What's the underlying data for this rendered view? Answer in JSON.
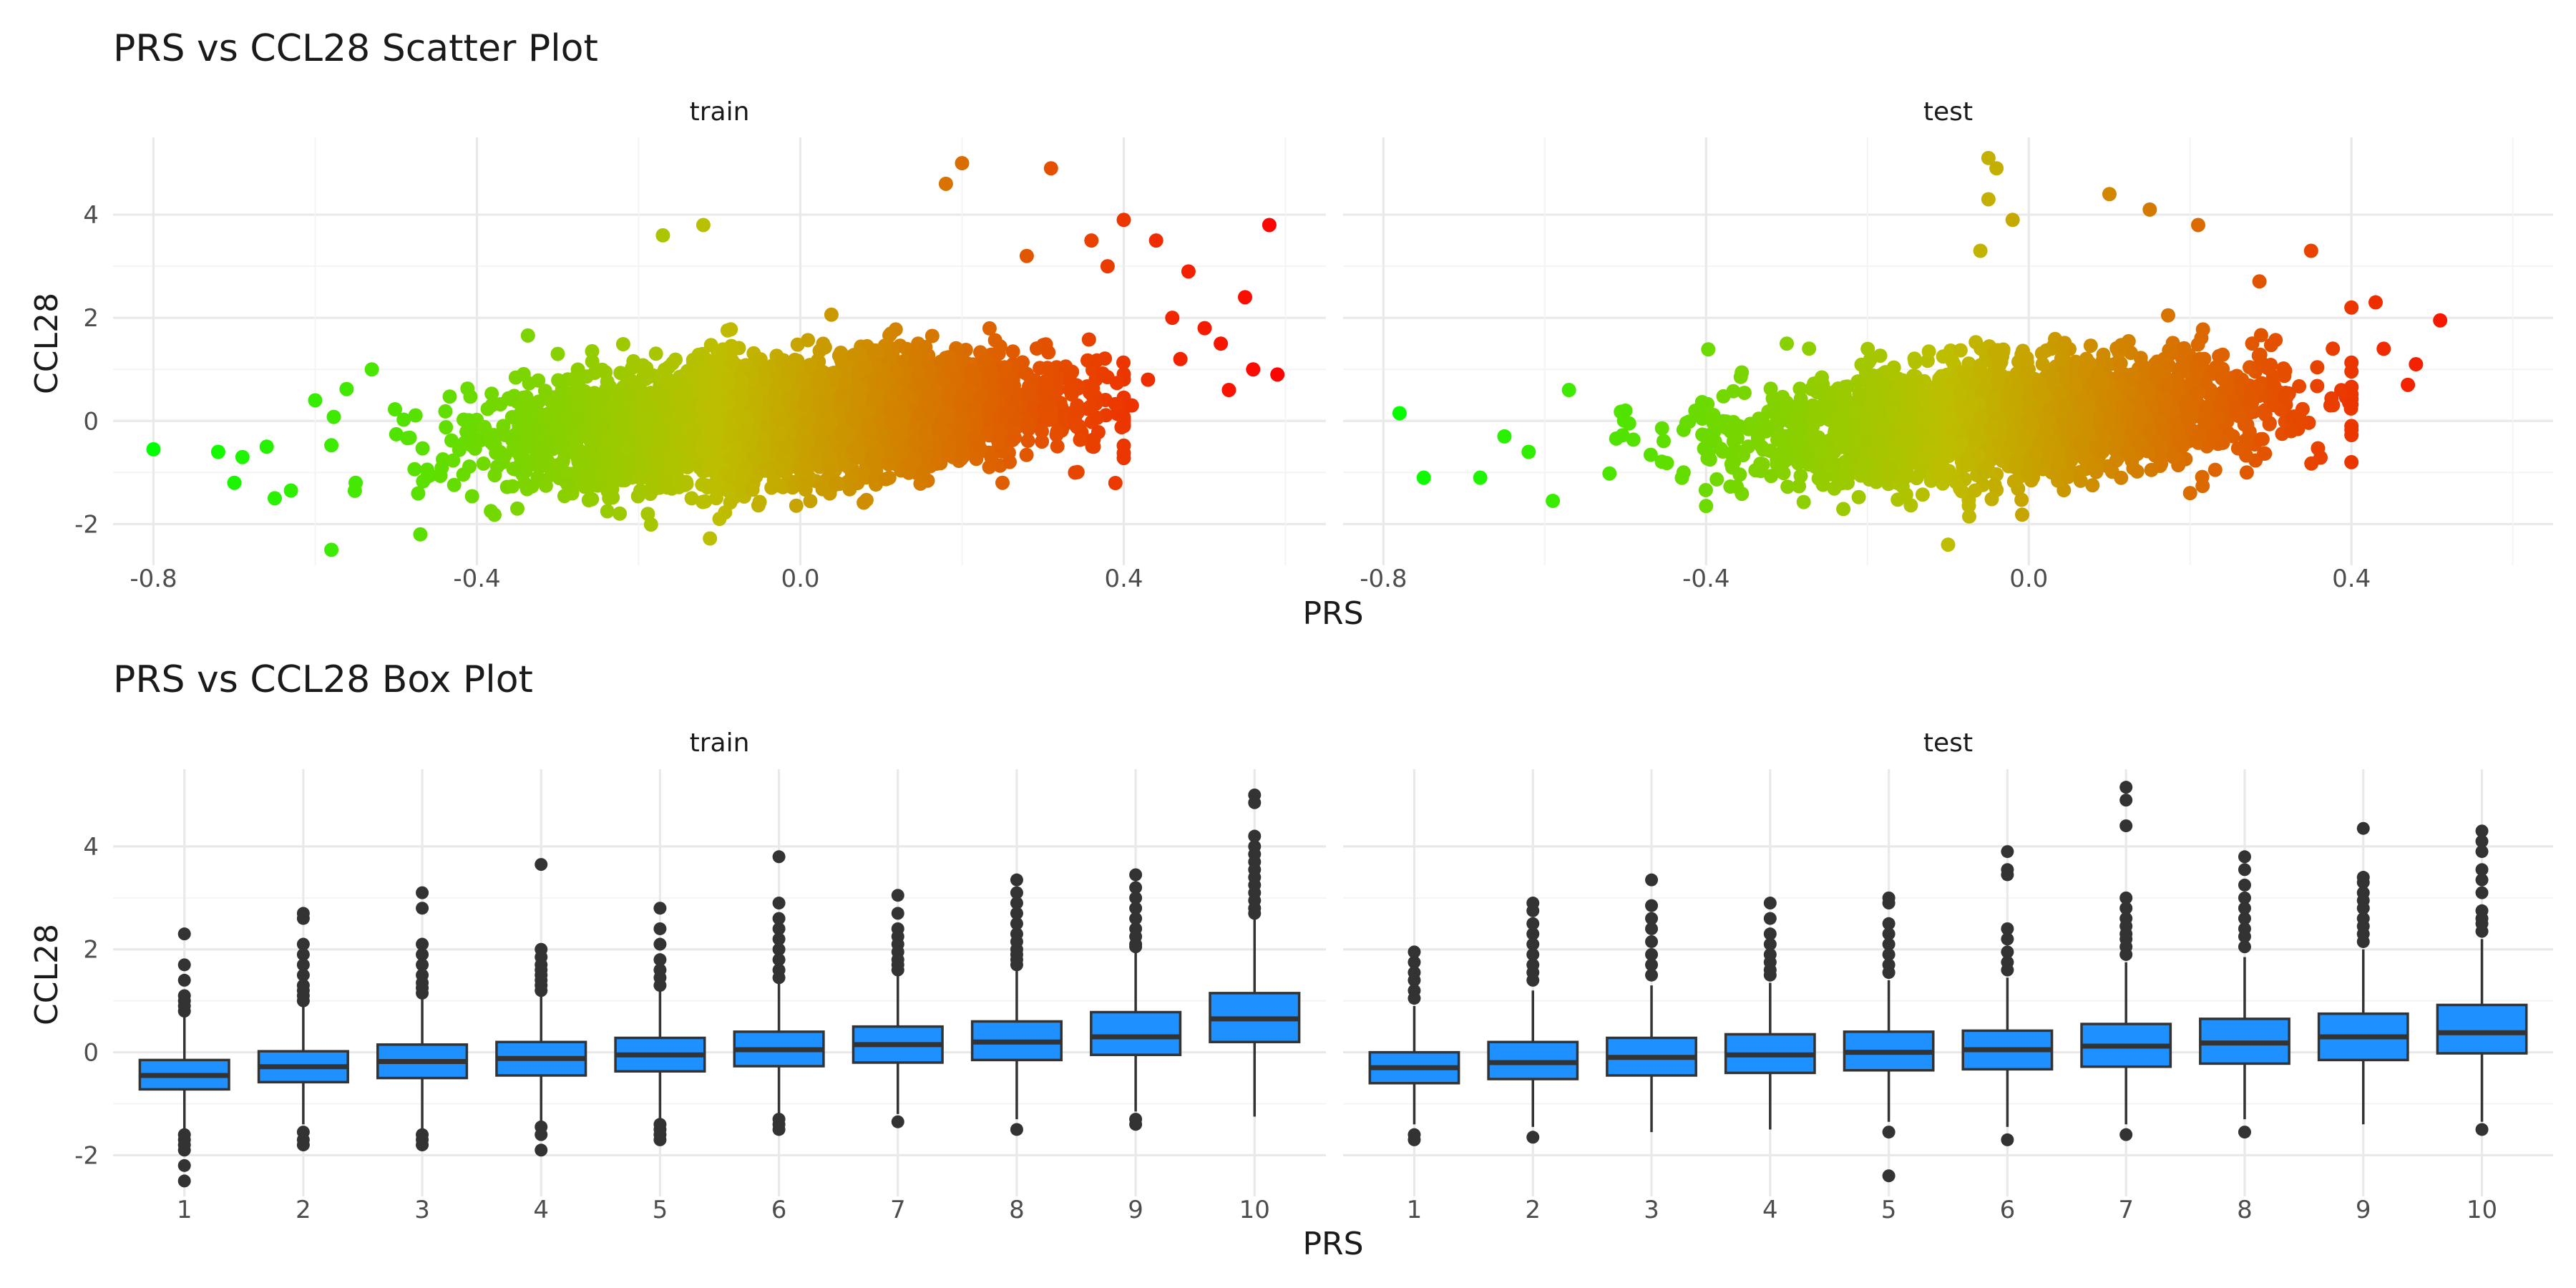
{
  "chart_data": [
    {
      "type": "scatter",
      "title": "PRS vs CCL28 Scatter Plot",
      "xlabel": "PRS",
      "ylabel": "CCL28",
      "xlim": [
        -0.85,
        0.65
      ],
      "ylim": [
        -2.8,
        5.5
      ],
      "xticks": [
        -0.8,
        -0.4,
        0.0,
        0.4
      ],
      "xtick_labels": [
        "-0.8",
        "-0.4",
        "0.0",
        "0.4"
      ],
      "yticks": [
        -2,
        0,
        2,
        4
      ],
      "ytick_labels": [
        "-2",
        "0",
        "2",
        "4"
      ],
      "grid": true,
      "color_scale": {
        "low": "#00ff00",
        "high": "#ff0000",
        "by": "PRS"
      },
      "panels": [
        {
          "name": "train",
          "points": [
            [
              -0.8,
              -0.55
            ],
            [
              -0.72,
              -0.6
            ],
            [
              -0.7,
              -1.2
            ],
            [
              -0.69,
              -0.7
            ],
            [
              -0.66,
              -0.5
            ],
            [
              -0.63,
              -1.35
            ],
            [
              -0.58,
              -2.5
            ],
            [
              -0.55,
              -1.2
            ],
            [
              -0.53,
              1.0
            ],
            [
              -0.47,
              -2.2
            ],
            [
              -0.3,
              1.3
            ],
            [
              -0.12,
              3.8
            ],
            [
              -0.17,
              3.6
            ],
            [
              0.2,
              5.0
            ],
            [
              0.18,
              4.6
            ],
            [
              0.28,
              3.2
            ],
            [
              0.31,
              4.9
            ],
            [
              0.36,
              3.5
            ],
            [
              0.38,
              3.0
            ],
            [
              0.4,
              3.9
            ],
            [
              0.44,
              3.5
            ],
            [
              0.46,
              2.0
            ],
            [
              0.47,
              1.2
            ],
            [
              0.48,
              2.9
            ],
            [
              0.5,
              1.8
            ],
            [
              0.52,
              1.5
            ],
            [
              0.53,
              0.6
            ],
            [
              0.55,
              2.4
            ],
            [
              0.56,
              1.0
            ],
            [
              0.43,
              0.8
            ],
            [
              0.41,
              0.3
            ],
            [
              0.58,
              3.8
            ],
            [
              0.59,
              0.9
            ],
            [
              0.25,
              -1.2
            ],
            [
              -0.1,
              -1.9
            ],
            [
              -0.35,
              -1.7
            ],
            [
              -0.6,
              0.4
            ],
            [
              -0.65,
              -1.5
            ]
          ]
        },
        {
          "name": "test",
          "points": [
            [
              -0.78,
              0.15
            ],
            [
              -0.75,
              -1.1
            ],
            [
              -0.68,
              -1.1
            ],
            [
              -0.65,
              -0.3
            ],
            [
              -0.62,
              -0.6
            ],
            [
              -0.59,
              -1.55
            ],
            [
              -0.57,
              0.6
            ],
            [
              -0.5,
              0.2
            ],
            [
              -0.05,
              5.1
            ],
            [
              -0.04,
              4.9
            ],
            [
              -0.05,
              4.3
            ],
            [
              -0.02,
              3.9
            ],
            [
              -0.06,
              3.3
            ],
            [
              0.1,
              4.4
            ],
            [
              0.15,
              4.1
            ],
            [
              0.21,
              3.8
            ],
            [
              0.35,
              3.3
            ],
            [
              0.4,
              2.2
            ],
            [
              0.43,
              2.3
            ],
            [
              0.44,
              1.4
            ],
            [
              0.48,
              1.1
            ],
            [
              0.51,
              1.95
            ],
            [
              0.47,
              0.7
            ],
            [
              0.4,
              -0.8
            ],
            [
              -0.1,
              -2.4
            ],
            [
              0.2,
              -1.4
            ],
            [
              -0.4,
              -1.65
            ],
            [
              -0.3,
              1.5
            ]
          ]
        }
      ]
    },
    {
      "type": "box",
      "title": "PRS vs CCL28 Box Plot",
      "xlabel": "PRS",
      "ylabel": "CCL28",
      "categories": [
        "1",
        "2",
        "3",
        "4",
        "5",
        "6",
        "7",
        "8",
        "9",
        "10"
      ],
      "ylim": [
        -2.8,
        5.5
      ],
      "yticks": [
        -2,
        0,
        2,
        4
      ],
      "ytick_labels": [
        "-2",
        "0",
        "2",
        "4"
      ],
      "box_color": "#1e90ff",
      "grid": true,
      "panels": [
        {
          "name": "train",
          "boxes": [
            {
              "q1": -0.72,
              "median": -0.45,
              "q3": -0.15,
              "lower": -1.5,
              "upper": 0.7,
              "outliers": [
                2.3,
                1.7,
                1.4,
                1.1,
                1.0,
                0.9,
                0.8,
                -1.6,
                -1.7,
                -1.8,
                -1.9,
                -2.2,
                -2.5
              ]
            },
            {
              "q1": -0.58,
              "median": -0.28,
              "q3": 0.02,
              "lower": -1.4,
              "upper": 0.9,
              "outliers": [
                2.7,
                2.6,
                2.1,
                1.9,
                1.7,
                1.5,
                1.3,
                1.2,
                1.1,
                1.0,
                -1.55,
                -1.7,
                -1.8
              ]
            },
            {
              "q1": -0.5,
              "median": -0.18,
              "q3": 0.15,
              "lower": -1.5,
              "upper": 1.1,
              "outliers": [
                3.1,
                2.8,
                2.1,
                1.9,
                1.7,
                1.5,
                1.35,
                1.25,
                1.15,
                -1.6,
                -1.7,
                -1.8
              ]
            },
            {
              "q1": -0.45,
              "median": -0.12,
              "q3": 0.2,
              "lower": -1.4,
              "upper": 1.15,
              "outliers": [
                3.65,
                2.0,
                1.85,
                1.7,
                1.6,
                1.5,
                1.4,
                1.3,
                1.2,
                -1.45,
                -1.6,
                -1.9
              ]
            },
            {
              "q1": -0.37,
              "median": -0.05,
              "q3": 0.28,
              "lower": -1.3,
              "upper": 1.2,
              "outliers": [
                2.8,
                2.4,
                2.1,
                1.8,
                1.6,
                1.45,
                1.3,
                -1.4,
                -1.5,
                -1.6,
                -1.7
              ]
            },
            {
              "q1": -0.27,
              "median": 0.05,
              "q3": 0.4,
              "lower": -1.2,
              "upper": 1.35,
              "outliers": [
                3.8,
                2.9,
                2.6,
                2.4,
                2.2,
                2.0,
                1.8,
                1.6,
                1.45,
                -1.3,
                -1.4,
                -1.5
              ]
            },
            {
              "q1": -0.2,
              "median": 0.15,
              "q3": 0.5,
              "lower": -1.2,
              "upper": 1.55,
              "outliers": [
                3.05,
                2.7,
                2.4,
                2.25,
                2.1,
                1.95,
                1.8,
                1.7,
                1.6,
                -1.35
              ]
            },
            {
              "q1": -0.15,
              "median": 0.2,
              "q3": 0.6,
              "lower": -1.3,
              "upper": 1.6,
              "outliers": [
                3.35,
                3.1,
                2.9,
                2.7,
                2.5,
                2.3,
                2.15,
                2.0,
                1.9,
                1.8,
                1.7,
                -1.5
              ]
            },
            {
              "q1": -0.05,
              "median": 0.3,
              "q3": 0.78,
              "lower": -1.15,
              "upper": 1.95,
              "outliers": [
                3.45,
                3.2,
                3.0,
                2.8,
                2.6,
                2.4,
                2.25,
                2.1,
                2.05,
                -1.3,
                -1.4
              ]
            },
            {
              "q1": 0.2,
              "median": 0.65,
              "q3": 1.15,
              "lower": -1.25,
              "upper": 2.6,
              "outliers": [
                5.0,
                4.85,
                4.2,
                4.0,
                3.85,
                3.7,
                3.55,
                3.4,
                3.25,
                3.1,
                2.95,
                2.8,
                2.7
              ]
            }
          ]
        },
        {
          "name": "test",
          "boxes": [
            {
              "q1": -0.6,
              "median": -0.3,
              "q3": 0.0,
              "lower": -1.4,
              "upper": 0.9,
              "outliers": [
                1.95,
                1.75,
                1.55,
                1.4,
                1.2,
                1.05,
                -1.6,
                -1.7
              ]
            },
            {
              "q1": -0.52,
              "median": -0.2,
              "q3": 0.2,
              "lower": -1.45,
              "upper": 1.2,
              "outliers": [
                2.9,
                2.75,
                2.5,
                2.3,
                2.1,
                1.9,
                1.7,
                1.55,
                1.4,
                -1.65
              ]
            },
            {
              "q1": -0.45,
              "median": -0.1,
              "q3": 0.28,
              "lower": -1.55,
              "upper": 1.3,
              "outliers": [
                3.35,
                2.85,
                2.6,
                2.4,
                2.15,
                1.9,
                1.7,
                1.5
              ]
            },
            {
              "q1": -0.4,
              "median": -0.05,
              "q3": 0.35,
              "lower": -1.5,
              "upper": 1.35,
              "outliers": [
                2.9,
                2.6,
                2.3,
                2.1,
                1.9,
                1.75,
                1.6,
                1.5
              ]
            },
            {
              "q1": -0.35,
              "median": 0.0,
              "q3": 0.4,
              "lower": -1.35,
              "upper": 1.4,
              "outliers": [
                3.0,
                2.9,
                2.5,
                2.3,
                2.1,
                1.9,
                1.7,
                1.55,
                -1.55,
                -2.4
              ]
            },
            {
              "q1": -0.33,
              "median": 0.05,
              "q3": 0.42,
              "lower": -1.45,
              "upper": 1.45,
              "outliers": [
                3.9,
                3.55,
                3.45,
                2.4,
                2.2,
                1.95,
                1.75,
                1.6,
                -1.7
              ]
            },
            {
              "q1": -0.28,
              "median": 0.12,
              "q3": 0.55,
              "lower": -1.4,
              "upper": 1.75,
              "outliers": [
                5.15,
                4.9,
                4.4,
                3.0,
                2.8,
                2.6,
                2.45,
                2.3,
                2.2,
                2.05,
                1.9,
                -1.6
              ]
            },
            {
              "q1": -0.22,
              "median": 0.18,
              "q3": 0.65,
              "lower": -1.3,
              "upper": 1.85,
              "outliers": [
                3.8,
                3.55,
                3.25,
                3.0,
                2.8,
                2.6,
                2.4,
                2.25,
                2.05,
                -1.55
              ]
            },
            {
              "q1": -0.15,
              "median": 0.3,
              "q3": 0.75,
              "lower": -1.4,
              "upper": 2.0,
              "outliers": [
                4.35,
                3.4,
                3.3,
                3.1,
                2.95,
                2.8,
                2.6,
                2.45,
                2.3,
                2.15
              ]
            },
            {
              "q1": -0.02,
              "median": 0.38,
              "q3": 0.92,
              "lower": -1.35,
              "upper": 2.2,
              "outliers": [
                4.3,
                4.1,
                3.9,
                3.55,
                3.35,
                3.1,
                2.75,
                2.6,
                2.5,
                2.35,
                -1.5
              ]
            }
          ]
        }
      ]
    }
  ]
}
